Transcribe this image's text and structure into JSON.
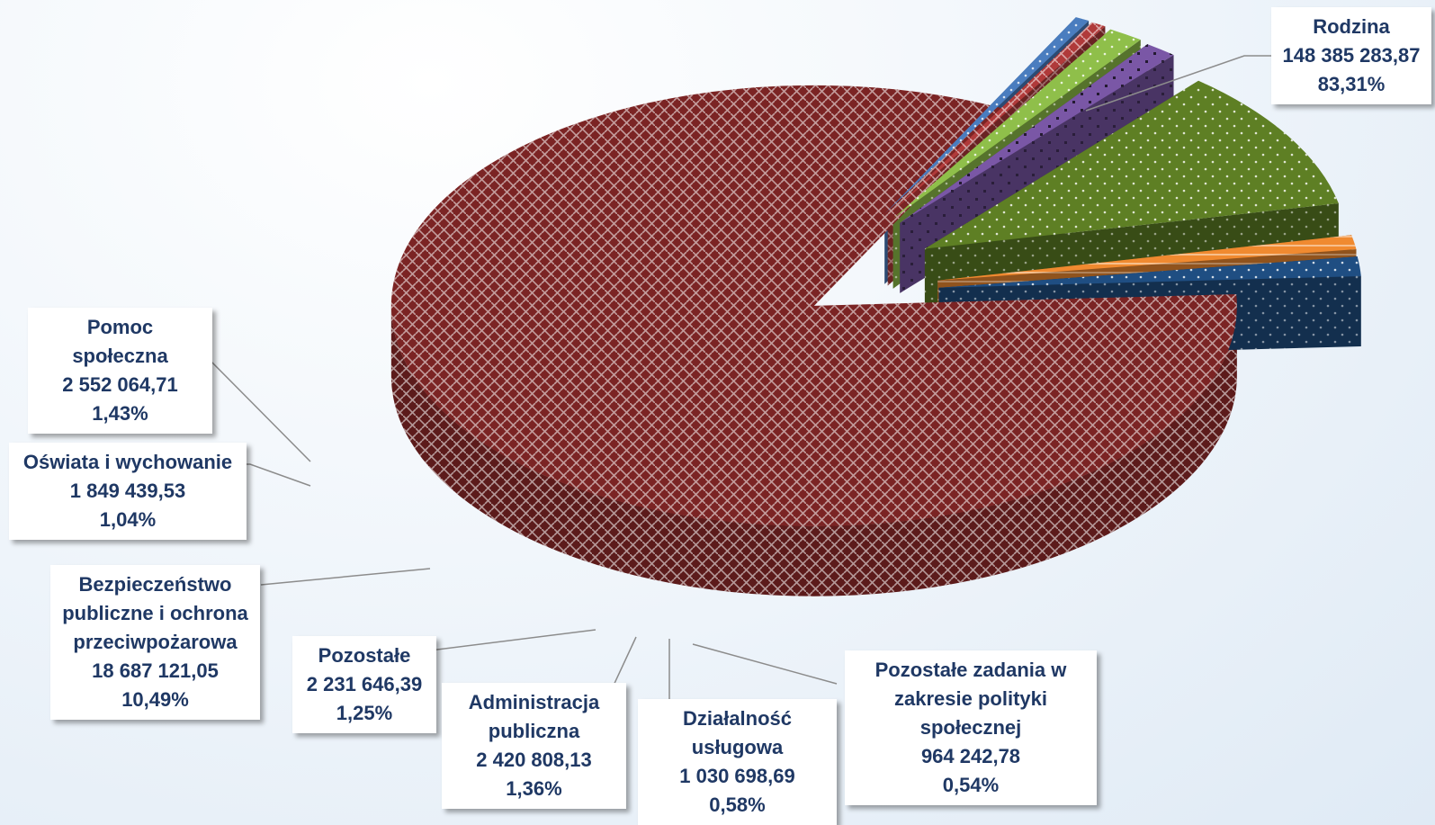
{
  "chart_data": {
    "type": "pie",
    "title": "",
    "slices": [
      {
        "label": "Rodzina",
        "value": "148 385 283,87",
        "percent": "83,31%",
        "value_num": 148385283.87,
        "percent_num": 83.31,
        "color": "#7b2424"
      },
      {
        "label": "Pozostałe zadania w zakresie polityki społecznej",
        "value": "964 242,78",
        "percent": "0,54%",
        "value_num": 964242.78,
        "percent_num": 0.54,
        "color": "#4a7dbf"
      },
      {
        "label": "Działalność usługowa",
        "value": "1 030 698,69",
        "percent": "0,58%",
        "value_num": 1030698.69,
        "percent_num": 0.58,
        "color": "#b03a3a"
      },
      {
        "label": "Administracja publiczna",
        "value": "2 420 808,13",
        "percent": "1,36%",
        "value_num": 2420808.13,
        "percent_num": 1.36,
        "color": "#8fbf4a"
      },
      {
        "label": "Pozostałe",
        "value": "2 231 646,39",
        "percent": "1,25%",
        "value_num": 2231646.39,
        "percent_num": 1.25,
        "color": "#7a57a6"
      },
      {
        "label": "Bezpieczeństwo publiczne i ochrona przeciwpożarowa",
        "value": "18 687 121,05",
        "percent": "10,49%",
        "value_num": 18687121.05,
        "percent_num": 10.49,
        "color": "#5e7f24"
      },
      {
        "label": "Oświata i wychowanie",
        "value": "1 849 439,53",
        "percent": "1,04%",
        "value_num": 1849439.53,
        "percent_num": 1.04,
        "color": "#f08a30"
      },
      {
        "label": "Pomoc społeczna",
        "value": "2 552 064,71",
        "percent": "1,43%",
        "value_num": 2552064.71,
        "percent_num": 1.43,
        "color": "#1f4e82"
      }
    ]
  },
  "labels": {
    "rodzina": {
      "name": "Rodzina",
      "value": "148 385 283,87",
      "percent": "83,31%"
    },
    "pomoc": {
      "name": "Pomoc społeczna",
      "value": "2 552 064,71",
      "percent": "1,43%"
    },
    "oswiata": {
      "name": "Oświata i wychowanie",
      "value": "1 849 439,53",
      "percent": "1,04%"
    },
    "bezp": {
      "name": "Bezpieczeństwo\npubliczne i ochrona\nprzeciwpożarowa",
      "value": "18 687 121,05",
      "percent": "10,49%"
    },
    "pozostale": {
      "name": "Pozostałe",
      "value": "2 231 646,39",
      "percent": "1,25%"
    },
    "admin": {
      "name": "Administracja\npubliczna",
      "value": "2 420 808,13",
      "percent": "1,36%"
    },
    "dzial": {
      "name": "Działalność\nusługowa",
      "value": "1 030 698,69",
      "percent": "0,58%"
    },
    "polityka": {
      "name": "Pozostałe zadania w\nzakresie polityki\nspołecznej",
      "value": "964 242,78",
      "percent": "0,54%"
    }
  }
}
